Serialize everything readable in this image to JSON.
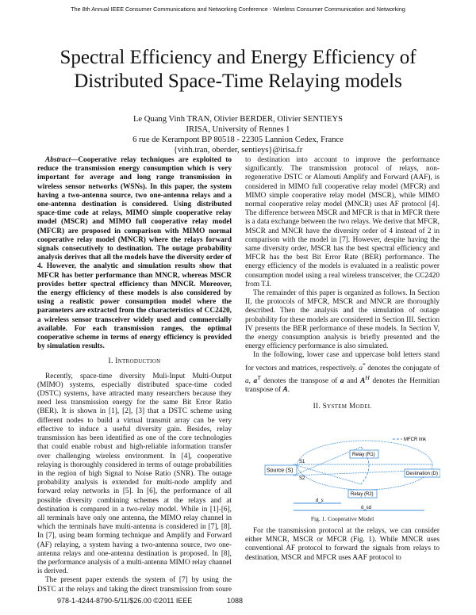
{
  "header": {
    "conference": "The 8th Annual IEEE Consumer Communications and Networking Conference - Wireless Consumer Communication and Networking"
  },
  "title_lines": [
    "Spectral Efficiency and Energy Efficiency of",
    "Distributed Space-Time Relaying models"
  ],
  "authors": {
    "names": "Le Quang Vinh TRAN, Olivier BERDER, Olivier SENTIEYS",
    "affiliation": "IRISA, University of Rennes 1",
    "address": "6 rue de Kerampont BP 80518 - 22305 Lannion Cedex, France",
    "email": "{vinh.tran, oberder, sentieys}@irisa.fr"
  },
  "abstract": {
    "label": "Abstract",
    "text": "—Cooperative relay techniques are exploited to reduce the transmission energy consumption which is very important for average and long range transmission in wireless sensor networks (WSNs). In this paper, the system having a two-antenna source, two one-antenna relays and a one-antenna destination is considered. Using distributed space-time code at relays, MIMO simple cooperative relay model (MSCR) and MIMO full cooperative relay model (MFCR) are proposed in comparison with MIMO normal cooperative relay model (MNCR) where the relays forward signals consecutively to destination. The outage probability analysis derives that all the models have the diversity order of 4. However, the analytic and simulation results show that MFCR has better performance than MNCR, whereas MSCR provides better spectral efficiency than MNCR. Moreover, the energy efficiency of these models is also considered by using a realistic power consumption model where the parameters are extracted from the characteristics of CC2420, a wireless sensor transceiver widely used and commercially available. For each transmission ranges, the optimal cooperative scheme in terms of energy efficiency is provided by simulation results."
  },
  "sections": {
    "intro_heading": "I. Introduction",
    "intro_p1": "Recently, space-time diversity Muli-Input Multi-Output (MIMO) systems, especially distributed space-time coded (DSTC) systems, have attracted many researchers because they need less transmission energy for the same Bit Error Ratio (BER). It is shown in [1], [2], [3] that a DSTC scheme using different nodes to build a virtual transmit array can be very effective to induce a useful diversity gain. Besides, relay transmission has been identified as one of the core technologies that could enable robust and high-reliable information transfer over challenging wireless environment. In [4], cooperative relaying is thoroughly considered in terms of outage probabilities in the region of high Signal to Noise Ratio (SNR). The outage probability analysis is extended for multi-node amplify and forward relay networks in [5]. In [6], the performance of all possible diversity combining schemes at the relays and at destination is compared in a two-relay model. While in [1]-[6], all terminals have only one antenna, the MIMO relay channel in which the terminals have multi-antenna is considered in [7], [8]. In [7], using beam forming technique and Amplify and Forward (AF) relaying, a system having a two-antenna source, two one-antenna relays and one-antenna destination is proposed. In [8], the performance analysis of a multi-antenna MIMO relay channel is derived.",
    "intro_p2": "The present paper extends the system of [7] by using the DSTC at the relays and taking the direct transmission from soure to destination into account to improve the performance significantly. The transmission protocol of relays, non-regenerative DSTC or Alamouti Amplify and Forward (AAF), is considered in MIMO full cooperative relay model (MFCR) and MIMO simple cooperative relay model (MSCR), while MIMO normal cooperative relay model (MNCR) uses AF protocol [4]. The difference between MSCR and MFCR is that in MFCR there is a data exchange between the two relays. We derive that MFCR, MSCR and MNCR have the diversity order of 4 instead of 2 in comparison with the model in [7]. However, despite having the same diversity order, MSCR has the best spectral efficiency and MFCR has the best Bit Error Rate (BER) performance. The energy efficiency of the models is evaluated in a realistic power consumption model using a real wireless transceiver, the CC2420 from T.I.",
    "intro_p3": "The remainder of this paper is organized as follows. In Section II, the protocols of MFCR, MSCR and MNCR are thoroughly described. Then the analysis and the simulation of outage probability for these models are considered in Section III. Section IV presents the BER performance of these models. In Section V, the energy consumption analysis is briefly presented and the energy efficiency performance is also simulated.",
    "intro_p4_a": "In the following, lower case and uppercase bold letters stand for vectors and matrices, respectively. ",
    "intro_p4_b": " denotes the conjugate of ",
    "intro_p4_c": " denotes the transpose of ",
    "intro_p4_d": " and ",
    "intro_p4_e": " denotes the Hermitian transpose of ",
    "system_heading": "II. System Model",
    "system_p1": "For the transmission protocol at the relays, we can consider either MNCR, MSCR or MFCR (Fig. 1). While MNCR uses conventional AF protocol to forward the signals from relays to destination, MSCR and MFCR uses AAF protocol to"
  },
  "figure": {
    "caption": "Fig. 1.   Cooperative Model",
    "legend": "MFCR link",
    "source": "Source (S)",
    "relay1": "Relay (R1)",
    "relay2": "Relay (R2)",
    "destination": "Destination (D)",
    "antenna1": "S1",
    "antenna2": "S2",
    "dist_short": "d_s",
    "dist_long": "d_sd",
    "link_color": "#3a8fdc"
  },
  "footer": {
    "isbn": "978-1-4244-8790-5/11/$26.00 ©2011 IEEE",
    "page": "1088"
  }
}
